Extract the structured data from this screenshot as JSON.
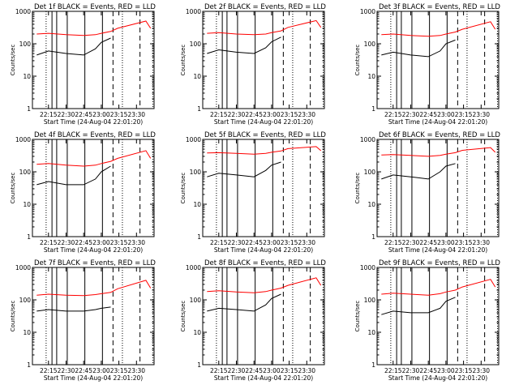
{
  "figure": {
    "panel_title_suffix": "BLACK = Events, RED = LLD",
    "xlabel": "Start Time (24-Aug-04 22:01:20)",
    "ylabel": "Counts/sec",
    "x_ticks": [
      "22:15",
      "22:30",
      "22:45",
      "23:00",
      "23:15",
      "23:30"
    ],
    "y_ticks": [
      "1",
      "10",
      "100",
      "1000"
    ],
    "colors": {
      "events": "#000000",
      "lld": "#ff0000",
      "frame": "#000000"
    }
  },
  "chart_data": [
    {
      "type": "line",
      "title": "Det 1f",
      "scale_y": "log",
      "ylim": [
        1,
        1000
      ],
      "x_start": "22:01:20",
      "x_end": "23:45",
      "series": [
        {
          "name": "Events",
          "color": "#000000",
          "x": [
            "22:05",
            "22:15",
            "22:30",
            "22:45",
            "22:55",
            "23:00",
            "23:08"
          ],
          "values": [
            45,
            60,
            50,
            45,
            70,
            110,
            150
          ]
        },
        {
          "name": "LLD",
          "color": "#ff0000",
          "x": [
            "22:05",
            "22:15",
            "22:30",
            "22:45",
            "22:55",
            "23:00",
            "23:08",
            "23:14",
            "23:38",
            "23:42"
          ],
          "values": [
            200,
            210,
            190,
            180,
            190,
            210,
            240,
            300,
            500,
            300
          ]
        }
      ],
      "markers": {
        "solid_vertical": [
          "22:18",
          "22:22",
          "22:31",
          "22:46",
          "23:01"
        ],
        "dotted_vertical": [
          "22:13",
          "23:18",
          "23:44"
        ],
        "dashed_vertical": [
          "23:10",
          "23:33"
        ]
      }
    },
    {
      "type": "line",
      "title": "Det 2f",
      "scale_y": "log",
      "ylim": [
        1,
        1000
      ],
      "x_start": "22:01:20",
      "x_end": "23:45",
      "series": [
        {
          "name": "Events",
          "color": "#000000",
          "x": [
            "22:05",
            "22:15",
            "22:30",
            "22:45",
            "22:55",
            "23:00",
            "23:08"
          ],
          "values": [
            50,
            65,
            55,
            50,
            75,
            115,
            160
          ]
        },
        {
          "name": "LLD",
          "color": "#ff0000",
          "x": [
            "22:05",
            "22:15",
            "22:30",
            "22:45",
            "22:55",
            "23:00",
            "23:08",
            "23:14",
            "23:38",
            "23:42"
          ],
          "values": [
            210,
            220,
            200,
            190,
            200,
            220,
            250,
            320,
            520,
            320
          ]
        }
      ],
      "markers": {
        "solid_vertical": [
          "22:18",
          "22:22",
          "22:31",
          "22:46",
          "23:01"
        ],
        "dotted_vertical": [
          "22:13",
          "23:18",
          "23:44"
        ],
        "dashed_vertical": [
          "23:10",
          "23:33"
        ]
      }
    },
    {
      "type": "line",
      "title": "Det 3f",
      "scale_y": "log",
      "ylim": [
        1,
        1000
      ],
      "x_start": "22:01:20",
      "x_end": "23:45",
      "series": [
        {
          "name": "Events",
          "color": "#000000",
          "x": [
            "22:05",
            "22:15",
            "22:30",
            "22:45",
            "22:55",
            "23:00",
            "23:08"
          ],
          "values": [
            45,
            55,
            45,
            40,
            60,
            100,
            130
          ]
        },
        {
          "name": "LLD",
          "color": "#ff0000",
          "x": [
            "22:05",
            "22:15",
            "22:30",
            "22:45",
            "22:55",
            "23:00",
            "23:08",
            "23:14",
            "23:38",
            "23:42"
          ],
          "values": [
            190,
            200,
            180,
            170,
            180,
            200,
            230,
            280,
            480,
            280
          ]
        }
      ],
      "markers": {
        "solid_vertical": [
          "22:18",
          "22:22",
          "22:31",
          "22:46",
          "23:01"
        ],
        "dotted_vertical": [
          "22:13",
          "23:18",
          "23:44"
        ],
        "dashed_vertical": [
          "23:10",
          "23:33"
        ]
      }
    },
    {
      "type": "line",
      "title": "Det 4f",
      "scale_y": "log",
      "ylim": [
        1,
        1000
      ],
      "x_start": "22:01:20",
      "x_end": "23:45",
      "series": [
        {
          "name": "Events",
          "color": "#000000",
          "x": [
            "22:05",
            "22:15",
            "22:30",
            "22:45",
            "22:55",
            "23:00",
            "23:08"
          ],
          "values": [
            40,
            50,
            40,
            40,
            60,
            100,
            150
          ]
        },
        {
          "name": "LLD",
          "color": "#ff0000",
          "x": [
            "22:05",
            "22:15",
            "22:30",
            "22:45",
            "22:55",
            "23:00",
            "23:08",
            "23:14",
            "23:38",
            "23:42"
          ],
          "values": [
            170,
            180,
            160,
            150,
            160,
            180,
            210,
            260,
            450,
            260
          ]
        }
      ],
      "markers": {
        "solid_vertical": [
          "22:18",
          "22:22",
          "22:31",
          "22:46",
          "23:01"
        ],
        "dotted_vertical": [
          "22:13",
          "23:18",
          "23:44"
        ],
        "dashed_vertical": [
          "23:10",
          "23:33"
        ]
      }
    },
    {
      "type": "line",
      "title": "Det 5f",
      "scale_y": "log",
      "ylim": [
        1,
        1000
      ],
      "x_start": "22:01:20",
      "x_end": "23:45",
      "series": [
        {
          "name": "Events",
          "color": "#000000",
          "x": [
            "22:05",
            "22:15",
            "22:30",
            "22:45",
            "22:55",
            "23:00",
            "23:08"
          ],
          "values": [
            70,
            90,
            80,
            70,
            110,
            160,
            200
          ]
        },
        {
          "name": "LLD",
          "color": "#ff0000",
          "x": [
            "22:05",
            "22:15",
            "22:30",
            "22:45",
            "22:55",
            "23:00",
            "23:08",
            "23:14",
            "23:38",
            "23:42"
          ],
          "values": [
            380,
            390,
            370,
            350,
            370,
            400,
            440,
            520,
            600,
            450
          ]
        }
      ],
      "markers": {
        "solid_vertical": [
          "22:18",
          "22:22",
          "22:31",
          "22:46",
          "23:01"
        ],
        "dotted_vertical": [
          "22:13",
          "23:18",
          "23:44"
        ],
        "dashed_vertical": [
          "23:10",
          "23:33"
        ]
      }
    },
    {
      "type": "line",
      "title": "Det 6f",
      "scale_y": "log",
      "ylim": [
        1,
        1000
      ],
      "x_start": "22:01:20",
      "x_end": "23:45",
      "series": [
        {
          "name": "Events",
          "color": "#000000",
          "x": [
            "22:05",
            "22:15",
            "22:30",
            "22:45",
            "22:55",
            "23:00",
            "23:08"
          ],
          "values": [
            60,
            80,
            70,
            60,
            100,
            150,
            180
          ]
        },
        {
          "name": "LLD",
          "color": "#ff0000",
          "x": [
            "22:05",
            "22:15",
            "22:30",
            "22:45",
            "22:55",
            "23:00",
            "23:08",
            "23:14",
            "23:38",
            "23:42"
          ],
          "values": [
            330,
            340,
            320,
            300,
            320,
            350,
            390,
            460,
            560,
            400
          ]
        }
      ],
      "markers": {
        "solid_vertical": [
          "22:18",
          "22:22",
          "22:31",
          "22:46",
          "23:01"
        ],
        "dotted_vertical": [
          "22:13",
          "23:18",
          "23:44"
        ],
        "dashed_vertical": [
          "23:10",
          "23:33"
        ]
      }
    },
    {
      "type": "line",
      "title": "Det 7f",
      "scale_y": "log",
      "ylim": [
        1,
        1000
      ],
      "x_start": "22:01:20",
      "x_end": "23:45",
      "series": [
        {
          "name": "Events",
          "color": "#000000",
          "x": [
            "22:05",
            "22:15",
            "22:30",
            "22:45",
            "22:55",
            "23:00",
            "23:08"
          ],
          "values": [
            45,
            50,
            45,
            45,
            50,
            55,
            60
          ]
        },
        {
          "name": "LLD",
          "color": "#ff0000",
          "x": [
            "22:05",
            "22:15",
            "22:30",
            "22:45",
            "22:55",
            "23:00",
            "23:08",
            "23:14",
            "23:38",
            "23:42"
          ],
          "values": [
            140,
            150,
            140,
            135,
            145,
            155,
            170,
            220,
            400,
            230
          ]
        }
      ],
      "markers": {
        "solid_vertical": [
          "22:18",
          "22:22",
          "22:31",
          "22:46",
          "23:01"
        ],
        "dotted_vertical": [
          "22:13",
          "23:18",
          "23:44"
        ],
        "dashed_vertical": [
          "23:10",
          "23:33"
        ]
      }
    },
    {
      "type": "line",
      "title": "Det 8f",
      "scale_y": "log",
      "ylim": [
        1,
        1000
      ],
      "x_start": "22:01:20",
      "x_end": "23:45",
      "series": [
        {
          "name": "Events",
          "color": "#000000",
          "x": [
            "22:05",
            "22:15",
            "22:30",
            "22:45",
            "22:55",
            "23:00",
            "23:08"
          ],
          "values": [
            45,
            55,
            50,
            45,
            70,
            110,
            150
          ]
        },
        {
          "name": "LLD",
          "color": "#ff0000",
          "x": [
            "22:05",
            "22:15",
            "22:30",
            "22:45",
            "22:55",
            "23:00",
            "23:08",
            "23:14",
            "23:38",
            "23:42"
          ],
          "values": [
            180,
            190,
            175,
            165,
            180,
            200,
            230,
            280,
            480,
            280
          ]
        }
      ],
      "markers": {
        "solid_vertical": [
          "22:18",
          "22:22",
          "22:31",
          "22:46",
          "23:01"
        ],
        "dotted_vertical": [
          "22:13",
          "23:18",
          "23:44"
        ],
        "dashed_vertical": [
          "23:10",
          "23:33"
        ]
      }
    },
    {
      "type": "line",
      "title": "Det 9f",
      "scale_y": "log",
      "ylim": [
        1,
        1000
      ],
      "x_start": "22:01:20",
      "x_end": "23:45",
      "series": [
        {
          "name": "Events",
          "color": "#000000",
          "x": [
            "22:05",
            "22:15",
            "22:30",
            "22:45",
            "22:55",
            "23:00",
            "23:08"
          ],
          "values": [
            35,
            45,
            40,
            40,
            55,
            90,
            120
          ]
        },
        {
          "name": "LLD",
          "color": "#ff0000",
          "x": [
            "22:05",
            "22:15",
            "22:30",
            "22:45",
            "22:55",
            "23:00",
            "23:08",
            "23:14",
            "23:38",
            "23:42"
          ],
          "values": [
            150,
            160,
            150,
            140,
            155,
            175,
            200,
            250,
            430,
            250
          ]
        }
      ],
      "markers": {
        "solid_vertical": [
          "22:18",
          "22:22",
          "22:31",
          "22:46",
          "23:01"
        ],
        "dotted_vertical": [
          "22:13",
          "23:18",
          "23:44"
        ],
        "dashed_vertical": [
          "23:10",
          "23:33"
        ]
      }
    }
  ]
}
